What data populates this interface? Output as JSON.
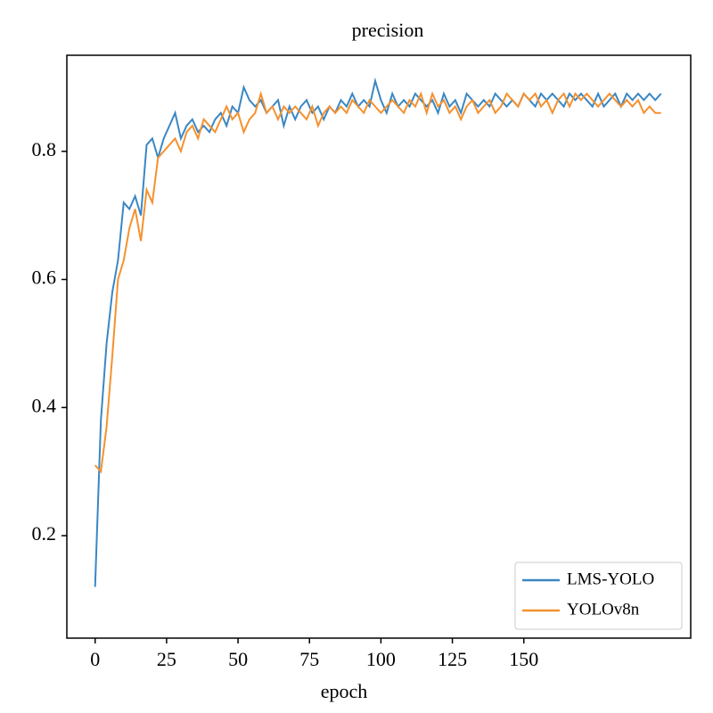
{
  "chart_data": {
    "type": "line",
    "title": "precision",
    "x_label": "epoch",
    "x": [
      0,
      2,
      4,
      6,
      8,
      10,
      12,
      14,
      16,
      18,
      20,
      22,
      24,
      26,
      28,
      30,
      32,
      34,
      36,
      38,
      40,
      42,
      44,
      46,
      48,
      50,
      52,
      54,
      56,
      58,
      60,
      62,
      64,
      66,
      68,
      70,
      72,
      74,
      76,
      78,
      80,
      82,
      84,
      86,
      88,
      90,
      92,
      94,
      96,
      98,
      100,
      102,
      104,
      106,
      108,
      110,
      112,
      114,
      116,
      118,
      120,
      122,
      124,
      126,
      128,
      130,
      132,
      134,
      136,
      138,
      140,
      142,
      144,
      146,
      148,
      150,
      152,
      154,
      156,
      158,
      160,
      162,
      164,
      166,
      168,
      170,
      172,
      174,
      176,
      178,
      180,
      182,
      184,
      186,
      188,
      190,
      192,
      194,
      196,
      198
    ],
    "series": [
      {
        "name": "LMS-YOLO",
        "color": "#3a87c4",
        "values": [
          0.12,
          0.38,
          0.5,
          0.58,
          0.63,
          0.72,
          0.71,
          0.73,
          0.7,
          0.81,
          0.82,
          0.79,
          0.82,
          0.84,
          0.86,
          0.82,
          0.84,
          0.85,
          0.83,
          0.84,
          0.83,
          0.85,
          0.86,
          0.84,
          0.87,
          0.86,
          0.9,
          0.88,
          0.87,
          0.88,
          0.86,
          0.87,
          0.88,
          0.84,
          0.87,
          0.85,
          0.87,
          0.88,
          0.86,
          0.87,
          0.85,
          0.87,
          0.86,
          0.88,
          0.87,
          0.89,
          0.87,
          0.88,
          0.87,
          0.91,
          0.88,
          0.86,
          0.89,
          0.87,
          0.88,
          0.87,
          0.89,
          0.88,
          0.87,
          0.88,
          0.86,
          0.89,
          0.87,
          0.88,
          0.86,
          0.89,
          0.88,
          0.87,
          0.88,
          0.87,
          0.89,
          0.88,
          0.87,
          0.88,
          0.87,
          0.89,
          0.88,
          0.87,
          0.89,
          0.88,
          0.89,
          0.88,
          0.87,
          0.89,
          0.88,
          0.89,
          0.88,
          0.87,
          0.89,
          0.87,
          0.88,
          0.89,
          0.87,
          0.89,
          0.88,
          0.89,
          0.88,
          0.89,
          0.88,
          0.89
        ]
      },
      {
        "name": "YOLOv8n",
        "color": "#f5912e",
        "values": [
          0.31,
          0.3,
          0.37,
          0.48,
          0.6,
          0.63,
          0.68,
          0.71,
          0.66,
          0.74,
          0.72,
          0.79,
          0.8,
          0.81,
          0.82,
          0.8,
          0.83,
          0.84,
          0.82,
          0.85,
          0.84,
          0.83,
          0.85,
          0.87,
          0.85,
          0.86,
          0.83,
          0.85,
          0.86,
          0.89,
          0.86,
          0.87,
          0.85,
          0.87,
          0.86,
          0.87,
          0.86,
          0.85,
          0.87,
          0.84,
          0.86,
          0.87,
          0.86,
          0.87,
          0.86,
          0.88,
          0.87,
          0.86,
          0.88,
          0.87,
          0.86,
          0.87,
          0.88,
          0.87,
          0.86,
          0.88,
          0.87,
          0.89,
          0.86,
          0.89,
          0.87,
          0.88,
          0.86,
          0.87,
          0.85,
          0.87,
          0.88,
          0.86,
          0.87,
          0.88,
          0.86,
          0.87,
          0.89,
          0.88,
          0.87,
          0.89,
          0.88,
          0.89,
          0.87,
          0.88,
          0.86,
          0.88,
          0.89,
          0.87,
          0.89,
          0.88,
          0.89,
          0.88,
          0.87,
          0.88,
          0.89,
          0.88,
          0.87,
          0.88,
          0.87,
          0.88,
          0.86,
          0.87,
          0.86,
          0.86
        ]
      }
    ],
    "xlim": [
      -9.9,
      208.4
    ],
    "xticks": [
      0,
      25,
      50,
      75,
      100,
      125,
      150
    ],
    "ylim": [
      0.04,
      0.95
    ],
    "yticks": [
      0.2,
      0.4,
      0.6,
      0.8
    ],
    "legend": "lower right"
  }
}
